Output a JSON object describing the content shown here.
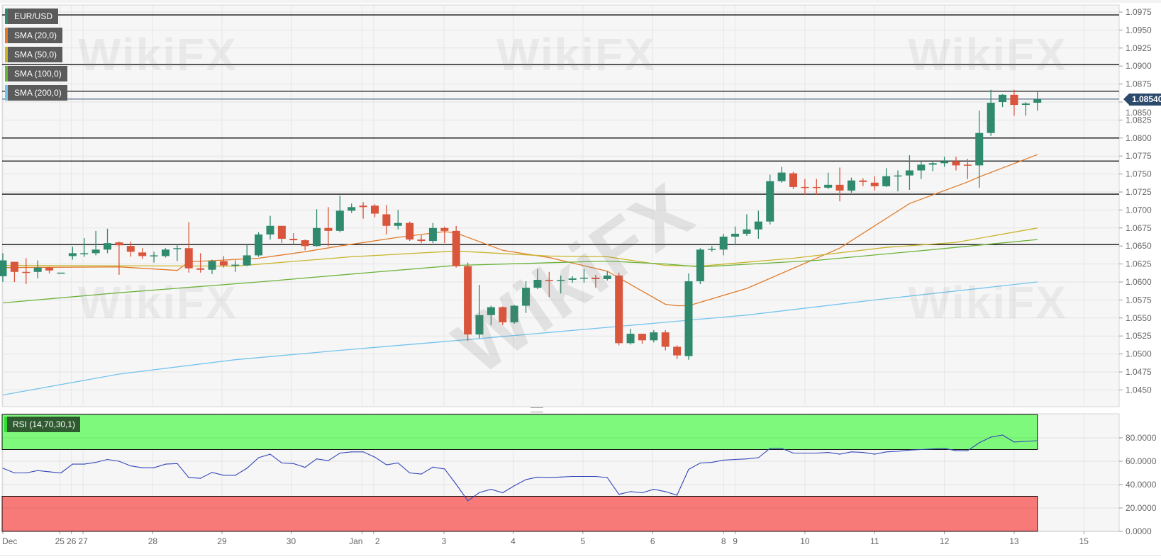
{
  "watermark_text": "WikiFX",
  "legend": {
    "main": {
      "label": "EUR/USD",
      "color": "#2e8b6e"
    },
    "sma": [
      {
        "label": "SMA (20,0)",
        "color": "#e07b2a"
      },
      {
        "label": "SMA (50,0)",
        "color": "#c9b52c"
      },
      {
        "label": "SMA (100,0)",
        "color": "#6cb33a"
      },
      {
        "label": "SMA (200,0)",
        "color": "#74c4ec"
      }
    ],
    "rsi": {
      "label": "RSI (14,70,30,1)",
      "color": "#2fe02f"
    }
  },
  "last_price": "1.08540",
  "colors": {
    "up": "#2f8a6e",
    "down": "#d9553c",
    "rsi_line": "#3346b8",
    "overbought_zone": "#7ff97b",
    "oversold_zone": "#f87a78",
    "price_line": "#2c4a6b"
  },
  "chart_data": [
    {
      "type": "candlestick",
      "title": "EUR/USD",
      "ylim": [
        1.044,
        1.099
      ],
      "yticks": [
        "1.0975",
        "1.0950",
        "1.0925",
        "1.0900",
        "1.0875",
        "1.0850",
        "1.0825",
        "1.0800",
        "1.0775",
        "1.0750",
        "1.0725",
        "1.0700",
        "1.0675",
        "1.0650",
        "1.0625",
        "1.0600",
        "1.0575",
        "1.0550",
        "1.0525",
        "1.0500",
        "1.0475",
        "1.0450"
      ],
      "xticks": [
        "Dec",
        "25",
        "26",
        "27",
        "28",
        "29",
        "30",
        "Jan",
        "2",
        "3",
        "4",
        "5",
        "6",
        "8",
        "9",
        "10",
        "11",
        "12",
        "13",
        "15"
      ],
      "horizontal_levels": [
        1.0971,
        1.0902,
        1.0865,
        1.08,
        1.0768,
        1.0722,
        1.0652
      ],
      "candles_ohlc": [
        [
          1.0608,
          1.064,
          1.06,
          1.063
        ],
        [
          1.0628,
          1.0628,
          1.06,
          1.0614
        ],
        [
          1.0614,
          1.0633,
          1.0597,
          1.0613
        ],
        [
          1.0614,
          1.063,
          1.0605,
          1.062
        ],
        [
          1.062,
          1.0621,
          1.0612,
          1.0616
        ],
        [
          1.0613,
          1.0613,
          1.0613,
          1.0613
        ],
        [
          1.0636,
          1.0649,
          1.0631,
          1.064
        ],
        [
          1.0639,
          1.0661,
          1.0635,
          1.064
        ],
        [
          1.064,
          1.0671,
          1.0637,
          1.0645
        ],
        [
          1.0645,
          1.0674,
          1.064,
          1.0654
        ],
        [
          1.0655,
          1.0656,
          1.061,
          1.0651
        ],
        [
          1.065,
          1.0656,
          1.0635,
          1.0642
        ],
        [
          1.0641,
          1.0647,
          1.0632,
          1.0636
        ],
        [
          1.0637,
          1.0642,
          1.0627,
          1.0637
        ],
        [
          1.0636,
          1.0647,
          1.0634,
          1.0645
        ],
        [
          1.0646,
          1.0652,
          1.0629,
          1.0647
        ],
        [
          1.0647,
          1.0683,
          1.0613,
          1.0619
        ],
        [
          1.0619,
          1.064,
          1.0613,
          1.0617
        ],
        [
          1.0617,
          1.0631,
          1.0611,
          1.0629
        ],
        [
          1.0629,
          1.0636,
          1.062,
          1.0623
        ],
        [
          1.0623,
          1.063,
          1.0614,
          1.0624
        ],
        [
          1.0623,
          1.0652,
          1.0622,
          1.0637
        ],
        [
          1.0637,
          1.0669,
          1.0635,
          1.0666
        ],
        [
          1.0666,
          1.0692,
          1.0659,
          1.0678
        ],
        [
          1.0678,
          1.0678,
          1.0654,
          1.066
        ],
        [
          1.066,
          1.0668,
          1.0653,
          1.0658
        ],
        [
          1.0658,
          1.0659,
          1.0644,
          1.065
        ],
        [
          1.065,
          1.0701,
          1.0649,
          1.0675
        ],
        [
          1.0675,
          1.0704,
          1.065,
          1.0671
        ],
        [
          1.0671,
          1.072,
          1.0669,
          1.0699
        ],
        [
          1.0699,
          1.0709,
          1.0696,
          1.0704
        ],
        [
          1.0706,
          1.0711,
          1.0688,
          1.0704
        ],
        [
          1.0706,
          1.0708,
          1.069,
          1.0695
        ],
        [
          1.0694,
          1.0707,
          1.0666,
          1.0678
        ],
        [
          1.0678,
          1.07,
          1.0673,
          1.0682
        ],
        [
          1.0682,
          1.0684,
          1.0657,
          1.0659
        ],
        [
          1.0659,
          1.0665,
          1.0654,
          1.0657
        ],
        [
          1.0657,
          1.0682,
          1.0654,
          1.0675
        ],
        [
          1.0675,
          1.0677,
          1.0654,
          1.0671
        ],
        [
          1.0671,
          1.0678,
          1.062,
          1.0622
        ],
        [
          1.0622,
          1.0627,
          1.0518,
          1.0527
        ],
        [
          1.0527,
          1.0596,
          1.0522,
          1.0554
        ],
        [
          1.0554,
          1.0567,
          1.054,
          1.0565
        ],
        [
          1.0565,
          1.0566,
          1.054,
          1.0544
        ],
        [
          1.0544,
          1.0568,
          1.0542,
          1.0567
        ],
        [
          1.0567,
          1.0601,
          1.0557,
          1.0592
        ],
        [
          1.0592,
          1.0618,
          1.059,
          1.0603
        ],
        [
          1.0603,
          1.0614,
          1.0579,
          1.0602
        ],
        [
          1.0602,
          1.0609,
          1.0584,
          1.0603
        ],
        [
          1.0603,
          1.0608,
          1.0599,
          1.0605
        ],
        [
          1.0605,
          1.0618,
          1.0599,
          1.0606
        ],
        [
          1.0606,
          1.061,
          1.0592,
          1.0604
        ],
        [
          1.0604,
          1.0615,
          1.0602,
          1.0609
        ],
        [
          1.0609,
          1.0613,
          1.0512,
          1.0515
        ],
        [
          1.0515,
          1.0535,
          1.0513,
          1.0528
        ],
        [
          1.0528,
          1.0528,
          1.0514,
          1.0519
        ],
        [
          1.0519,
          1.0533,
          1.0516,
          1.053
        ],
        [
          1.053,
          1.0533,
          1.0505,
          1.051
        ],
        [
          1.051,
          1.0512,
          1.0493,
          1.0498
        ],
        [
          1.0497,
          1.0612,
          1.0492,
          1.0601
        ],
        [
          1.0601,
          1.0647,
          1.0597,
          1.0645
        ],
        [
          1.0645,
          1.065,
          1.0642,
          1.0646
        ],
        [
          1.0645,
          1.0667,
          1.0637,
          1.0663
        ],
        [
          1.0663,
          1.0677,
          1.0651,
          1.0667
        ],
        [
          1.0667,
          1.0694,
          1.0664,
          1.0673
        ],
        [
          1.0673,
          1.0699,
          1.066,
          1.0684
        ],
        [
          1.0684,
          1.0749,
          1.068,
          1.074
        ],
        [
          1.074,
          1.076,
          1.0738,
          1.0752
        ],
        [
          1.0751,
          1.0753,
          1.0729,
          1.0732
        ],
        [
          1.0732,
          1.0743,
          1.0721,
          1.0731
        ],
        [
          1.0732,
          1.0743,
          1.0721,
          1.0731
        ],
        [
          1.0731,
          1.0752,
          1.0729,
          1.0735
        ],
        [
          1.0735,
          1.0759,
          1.0712,
          1.0727
        ],
        [
          1.0727,
          1.0745,
          1.0724,
          1.0741
        ],
        [
          1.0741,
          1.0744,
          1.0733,
          1.0739
        ],
        [
          1.0738,
          1.0747,
          1.0727,
          1.0733
        ],
        [
          1.0733,
          1.0758,
          1.0732,
          1.0747
        ],
        [
          1.0747,
          1.0755,
          1.0726,
          1.0748
        ],
        [
          1.0748,
          1.0776,
          1.0728,
          1.0755
        ],
        [
          1.0755,
          1.0768,
          1.0743,
          1.0763
        ],
        [
          1.0763,
          1.0768,
          1.0754,
          1.0765
        ],
        [
          1.0765,
          1.0774,
          1.076,
          1.0768
        ],
        [
          1.0768,
          1.0774,
          1.0755,
          1.0762
        ],
        [
          1.0763,
          1.0771,
          1.0743,
          1.0762
        ],
        [
          1.0762,
          1.0838,
          1.0731,
          1.0807
        ],
        [
          1.0807,
          1.0867,
          1.0803,
          1.0849
        ],
        [
          1.085,
          1.0861,
          1.0843,
          1.086
        ],
        [
          1.086,
          1.0867,
          1.0831,
          1.0846
        ],
        [
          1.0846,
          1.085,
          1.0831,
          1.0848
        ],
        [
          1.0849,
          1.0865,
          1.0838,
          1.0854
        ]
      ],
      "sma_series": [
        {
          "name": "SMA (20,0)",
          "points": [
            [
              0,
              1.062
            ],
            [
              10,
              1.0621
            ],
            [
              15,
              1.0616
            ],
            [
              16,
              1.0628
            ],
            [
              22,
              1.0633
            ],
            [
              26,
              1.0642
            ],
            [
              29,
              1.065
            ],
            [
              34,
              1.0662
            ],
            [
              38,
              1.067
            ],
            [
              39,
              1.0668
            ],
            [
              43,
              1.0644
            ],
            [
              47,
              1.0634
            ],
            [
              52,
              1.0615
            ],
            [
              57,
              1.0569
            ],
            [
              58,
              1.0567
            ],
            [
              59,
              1.0567
            ],
            [
              64,
              1.0591
            ],
            [
              72,
              1.0647
            ],
            [
              78,
              1.0709
            ],
            [
              83,
              1.0739
            ],
            [
              84,
              1.0746
            ],
            [
              89,
              1.0777
            ]
          ]
        },
        {
          "name": "SMA (50,0)",
          "points": [
            [
              0,
              1.0623
            ],
            [
              20,
              1.0622
            ],
            [
              30,
              1.0635
            ],
            [
              39,
              1.0643
            ],
            [
              47,
              1.0636
            ],
            [
              52,
              1.0635
            ],
            [
              57,
              1.0623
            ],
            [
              60,
              1.0622
            ],
            [
              68,
              1.0633
            ],
            [
              76,
              1.0648
            ],
            [
              82,
              1.0655
            ],
            [
              89,
              1.0675
            ]
          ]
        },
        {
          "name": "SMA (100,0)",
          "points": [
            [
              0,
              1.0571
            ],
            [
              10,
              1.0585
            ],
            [
              22,
              1.06
            ],
            [
              30,
              1.0611
            ],
            [
              39,
              1.0623
            ],
            [
              52,
              1.0629
            ],
            [
              57,
              1.0625
            ],
            [
              60,
              1.0621
            ],
            [
              70,
              1.063
            ],
            [
              80,
              1.0645
            ],
            [
              89,
              1.0659
            ]
          ]
        },
        {
          "name": "SMA (200,0)",
          "points": [
            [
              0,
              1.0443
            ],
            [
              10,
              1.0472
            ],
            [
              20,
              1.0492
            ],
            [
              29,
              1.0505
            ],
            [
              40,
              1.052
            ],
            [
              57,
              1.0544
            ],
            [
              64,
              1.0554
            ],
            [
              75,
              1.0575
            ],
            [
              89,
              1.06
            ]
          ]
        }
      ]
    },
    {
      "type": "line",
      "title": "RSI (14,70,30,1)",
      "ylim": [
        0,
        100
      ],
      "yticks": [
        "80.0000",
        "60.0000",
        "40.0000",
        "20.0000",
        "0.0000"
      ],
      "overbought": 70,
      "oversold": 30,
      "values": [
        54,
        50,
        50,
        52,
        51,
        50,
        57.5,
        57.5,
        59,
        61.5,
        60,
        56,
        54.4,
        54.4,
        57.5,
        58,
        46,
        45.4,
        50.4,
        48,
        48,
        54,
        63,
        66,
        58.5,
        58,
        54.8,
        62,
        60.5,
        67,
        68,
        68,
        63.5,
        57,
        58.5,
        50,
        49,
        55,
        53.4,
        40.3,
        26.2,
        33.2,
        36,
        33,
        39,
        44.3,
        46.4,
        46,
        46.5,
        47,
        47,
        47,
        46,
        31.7,
        34,
        33,
        36,
        34,
        31,
        53,
        58.5,
        59,
        61,
        61.5,
        62,
        63,
        71,
        71,
        67,
        67,
        67,
        67.5,
        66,
        68,
        67.5,
        66,
        68,
        68.5,
        69.5,
        70,
        70.5,
        71,
        69,
        69,
        75.8,
        80.6,
        82.4,
        76.4,
        77,
        77.6
      ]
    }
  ]
}
